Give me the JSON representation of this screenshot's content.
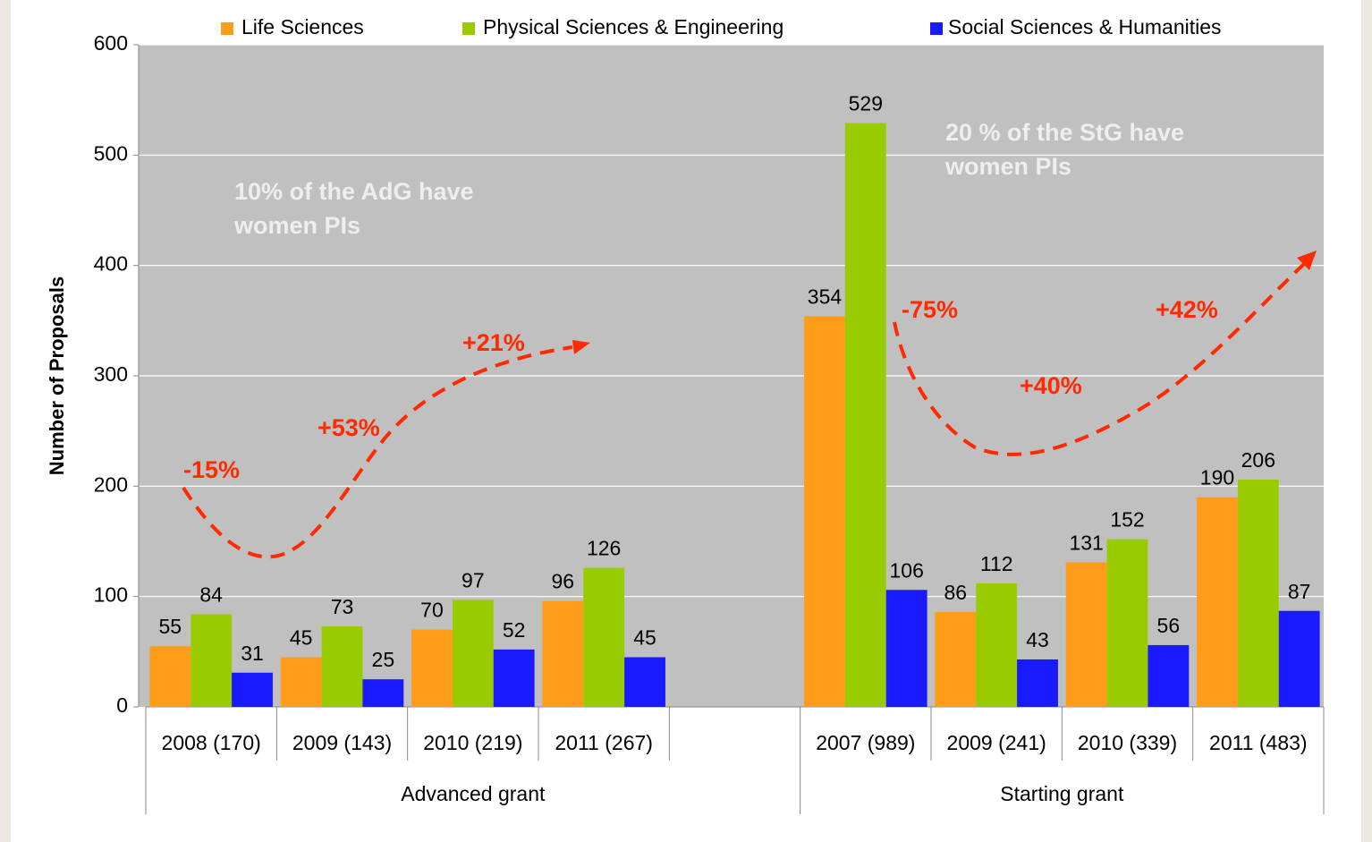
{
  "chart_data": {
    "type": "bar",
    "y_label": "Number of Proposals",
    "categories": [
      "2008 (170)",
      "2009 (143)",
      "2010 (219)",
      "2011 (267)",
      null,
      "2007 (989)",
      "2009 (241)",
      "2010 (339)",
      "2011 (483)"
    ],
    "groups": [
      "Advanced grant",
      "Starting grant"
    ],
    "series": [
      {
        "name": "Life Sciences",
        "color": "#ff9c1a",
        "values": [
          55,
          45,
          70,
          96,
          null,
          354,
          86,
          131,
          190
        ]
      },
      {
        "name": "Physical Sciences & Engineering",
        "color": "#99cc00",
        "values": [
          84,
          73,
          97,
          126,
          null,
          529,
          112,
          152,
          206
        ]
      },
      {
        "name": "Social Sciences & Humanities",
        "color": "#1a1aff",
        "values": [
          31,
          25,
          52,
          45,
          null,
          106,
          43,
          56,
          87
        ]
      }
    ],
    "ylim": [
      0,
      600
    ],
    "yticks": [
      0,
      100,
      200,
      300,
      400,
      500,
      600
    ],
    "grid": true,
    "notes": [
      [
        "10% of the AdG have",
        "women PIs"
      ],
      [
        "20 % of the StG have",
        "women PIs"
      ]
    ],
    "changes": [
      "-15%",
      "+53%",
      "+21%",
      "-75%",
      "+40%",
      "+42%"
    ]
  }
}
